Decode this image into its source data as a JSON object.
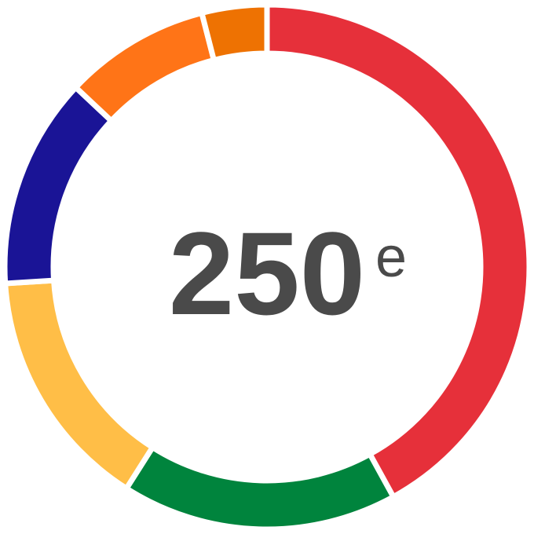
{
  "chart_data": {
    "type": "donut",
    "values": [
      42,
      17,
      15,
      13,
      9,
      4
    ],
    "colors": [
      "#e6303a",
      "#00843d",
      "#ffbe47",
      "#1a1496",
      "#ff7417",
      "#ee7202"
    ],
    "center_label": "250",
    "center_suffix": "e"
  }
}
